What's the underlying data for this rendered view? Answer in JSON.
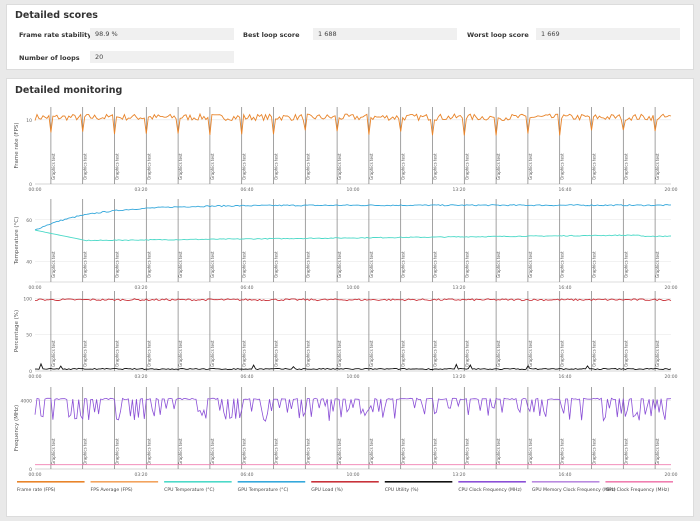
{
  "scores": {
    "title": "Detailed scores",
    "items": [
      {
        "label": "Frame rate stability",
        "value": "98.9 %"
      },
      {
        "label": "Best loop score",
        "value": "1 688"
      },
      {
        "label": "Worst loop score",
        "value": "1 669"
      },
      {
        "label": "Number of loops",
        "value": "20"
      }
    ]
  },
  "monitoring": {
    "title": "Detailed monitoring"
  },
  "chart_data": [
    {
      "type": "line",
      "name": "frame-rate",
      "ylabel": "Frame rate (FPS)",
      "yticks": [
        "0",
        "10"
      ],
      "ylim": [
        0,
        12
      ],
      "x_ticks": [
        "00:00",
        "03:20",
        "06:40",
        "10:00",
        "13:20",
        "16:40",
        "20:00"
      ],
      "marker_label": "Graphics test",
      "markers": [
        0.5,
        1.5,
        2.5,
        3.5,
        4.5,
        5.5,
        6.5,
        7.5,
        8.5,
        9.5,
        10.5,
        11.5,
        12.5,
        13.5,
        14.5,
        15.5,
        16.5,
        17.5,
        18.5,
        19.5
      ],
      "series": [
        {
          "key": "fps",
          "baseline": 10.4,
          "amplitude": 0.5,
          "dips": 7.5
        }
      ]
    },
    {
      "type": "line",
      "name": "temperature",
      "ylabel": "Temperature (°C)",
      "yticks": [
        "40",
        "60"
      ],
      "ylim": [
        30,
        70
      ],
      "x_ticks": [
        "00:00",
        "03:20",
        "06:40",
        "10:00",
        "13:20",
        "16:40",
        "20:00"
      ],
      "marker_label": "Graphics test",
      "markers": [
        0.5,
        1.5,
        2.5,
        3.5,
        4.5,
        5.5,
        6.5,
        7.5,
        8.5,
        9.5,
        10.5,
        11.5,
        12.5,
        13.5,
        14.5,
        15.5,
        16.5,
        17.5,
        18.5,
        19.5
      ],
      "series": [
        {
          "key": "gpu_temp",
          "start": 55,
          "end": 67
        },
        {
          "key": "cpu_temp",
          "start": 55,
          "end": 52
        }
      ]
    },
    {
      "type": "line",
      "name": "percentage",
      "ylabel": "Percentage (%)",
      "yticks": [
        "0",
        "50",
        "100"
      ],
      "ylim": [
        0,
        110
      ],
      "x_ticks": [
        "00:00",
        "03:20",
        "06:40",
        "10:00",
        "13:20",
        "16:40",
        "20:00"
      ],
      "marker_label": "Graphics test",
      "markers": [
        0.5,
        1.5,
        2.5,
        3.5,
        4.5,
        5.5,
        6.5,
        7.5,
        8.5,
        9.5,
        10.5,
        11.5,
        12.5,
        13.5,
        14.5,
        15.5,
        16.5,
        17.5,
        18.5,
        19.5
      ],
      "series": [
        {
          "key": "gpu_load",
          "level": 98
        },
        {
          "key": "cpu_util",
          "level": 2
        }
      ]
    },
    {
      "type": "line",
      "name": "frequency",
      "ylabel": "Frequency (MHz)",
      "yticks": [
        "0",
        "4000"
      ],
      "ylim": [
        0,
        4800
      ],
      "x_ticks": [
        "00:00",
        "03:20",
        "06:40",
        "10:00",
        "13:20",
        "16:40",
        "20:00"
      ],
      "marker_label": "Graphics test",
      "markers": [
        0.5,
        1.5,
        2.5,
        3.5,
        4.5,
        5.5,
        6.5,
        7.5,
        8.5,
        9.5,
        10.5,
        11.5,
        12.5,
        13.5,
        14.5,
        15.5,
        16.5,
        17.5,
        18.5,
        19.5
      ],
      "series": [
        {
          "key": "cpu_clock",
          "high": 4100,
          "low": 2800
        },
        {
          "key": "gpu_clock",
          "level": 250
        }
      ]
    }
  ],
  "legend": [
    {
      "label": "Frame rate (FPS)",
      "color": "#e8842a"
    },
    {
      "label": "FPS Average (FPS)",
      "color": "#f2a35e"
    },
    {
      "label": "CPU Temperature (°C)",
      "color": "#4dd9c8"
    },
    {
      "label": "GPU Temperature (°C)",
      "color": "#35a8db"
    },
    {
      "label": "GPU Load (%)",
      "color": "#c8323a"
    },
    {
      "label": "CPU Utility (%)",
      "color": "#111111"
    },
    {
      "label": "CPU Clock Frequency (MHz)",
      "color": "#8a4fd6"
    },
    {
      "label": "GPU Memory Clock Frequency (MHz)",
      "color": "#b98ae0"
    },
    {
      "label": "GPU Clock Frequency (MHz)",
      "color": "#f07fb0"
    }
  ],
  "colors": {
    "fps": "#e8842a",
    "cpu_temp": "#4dd9c8",
    "gpu_temp": "#35a8db",
    "gpu_load": "#c8323a",
    "cpu_util": "#111111",
    "cpu_clock": "#8a4fd6",
    "gpu_clock": "#f07fb0",
    "marker": "#7a7a7a",
    "grid": "#e4e4e4"
  }
}
